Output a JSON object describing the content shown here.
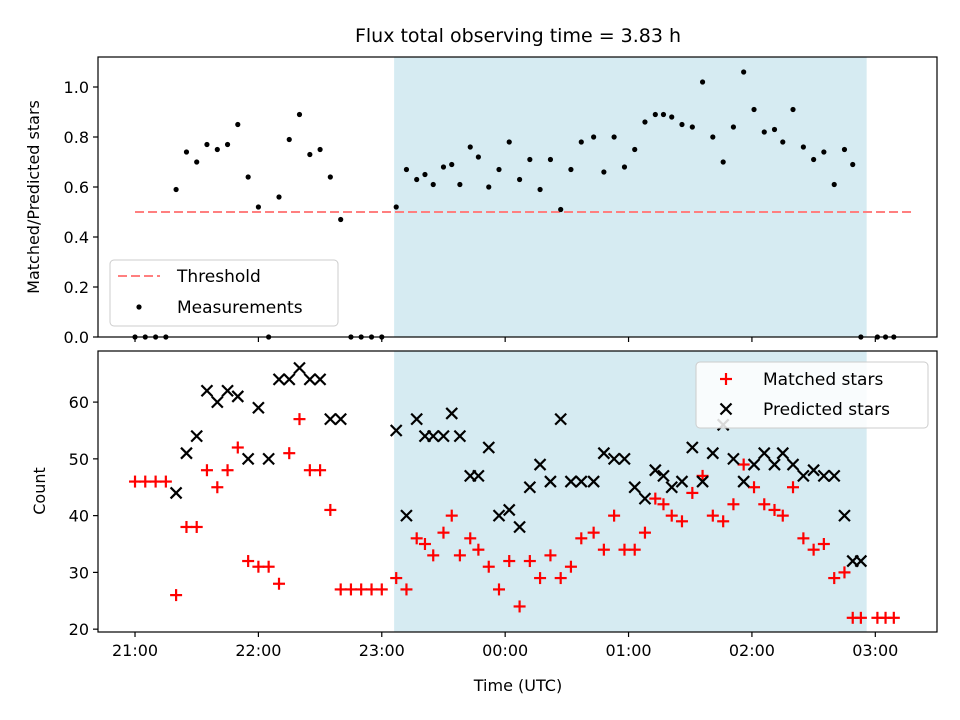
{
  "chart_data": {
    "type": "scatter",
    "title": "Flux total observing time = 3.83 h",
    "xlabel": "Time (UTC)",
    "x_ticks": [
      "21:00",
      "22:00",
      "23:00",
      "00:00",
      "01:00",
      "02:00",
      "03:00"
    ],
    "colors": {
      "shade": "#add8e6",
      "threshold": "#ff7f7f",
      "measurement": "#000000",
      "matched": "#ff0000",
      "predicted": "#000000"
    },
    "x_range_hours_after_2100": [
      -0.3,
      6.5
    ],
    "shaded_region_hours_after_2100": [
      2.1,
      5.93
    ],
    "top_panel": {
      "ylabel": "Matched/Predicted stars",
      "ylim": [
        0,
        1.12
      ],
      "y_ticks": [
        "0.0",
        "0.2",
        "0.4",
        "0.6",
        "0.8",
        "1.0"
      ],
      "legend": [
        "Threshold",
        "Measurements"
      ],
      "legend_position": "lower-left",
      "threshold": {
        "name": "Threshold",
        "value": 0.5,
        "x_start_h": 0,
        "x_end_h": 6.3
      },
      "measurements": {
        "name": "Measurements",
        "x": [
          0,
          0.083,
          0.167,
          0.25,
          0.333,
          0.417,
          0.5,
          0.583,
          0.667,
          0.75,
          0.833,
          0.917,
          1.0,
          1.083,
          1.167,
          1.25,
          1.333,
          1.417,
          1.5,
          1.583,
          1.667,
          1.75,
          1.833,
          1.917,
          2.0,
          2.117,
          2.2,
          2.283,
          2.35,
          2.417,
          2.5,
          2.567,
          2.633,
          2.717,
          2.783,
          2.867,
          2.95,
          3.033,
          3.117,
          3.2,
          3.283,
          3.367,
          3.45,
          3.533,
          3.617,
          3.717,
          3.8,
          3.883,
          3.967,
          4.05,
          4.133,
          4.217,
          4.283,
          4.35,
          4.433,
          4.517,
          4.6,
          4.683,
          4.767,
          4.85,
          4.933,
          5.017,
          5.1,
          5.183,
          5.25,
          5.333,
          5.417,
          5.5,
          5.583,
          5.667,
          5.75,
          5.817,
          5.883,
          6.017,
          6.083,
          6.15
        ],
        "y": [
          0,
          0,
          0,
          0,
          0.59,
          0.74,
          0.7,
          0.77,
          0.75,
          0.77,
          0.85,
          0.64,
          0.52,
          0,
          0.56,
          0.79,
          0.89,
          0.73,
          0.75,
          0.64,
          0.47,
          0,
          0,
          0,
          0,
          0.52,
          0.67,
          0.63,
          0.65,
          0.61,
          0.68,
          0.69,
          0.61,
          0.76,
          0.72,
          0.6,
          0.67,
          0.78,
          0.63,
          0.71,
          0.59,
          0.71,
          0.51,
          0.67,
          0.78,
          0.8,
          0.66,
          0.8,
          0.68,
          0.75,
          0.86,
          0.89,
          0.89,
          0.88,
          0.85,
          0.84,
          1.02,
          0.8,
          0.7,
          0.84,
          1.06,
          0.91,
          0.82,
          0.83,
          0.78,
          0.91,
          0.76,
          0.71,
          0.74,
          0.61,
          0.75,
          0.69,
          0,
          0,
          0,
          0
        ]
      }
    },
    "bottom_panel": {
      "ylabel": "Count",
      "ylim": [
        19.5,
        69
      ],
      "y_ticks": [
        "20",
        "30",
        "40",
        "50",
        "60"
      ],
      "legend": [
        "Matched stars",
        "Predicted stars"
      ],
      "legend_position": "upper-right",
      "series": [
        {
          "name": "Matched stars",
          "x": [
            0,
            0.083,
            0.167,
            0.25,
            0.333,
            0.417,
            0.5,
            0.583,
            0.667,
            0.75,
            0.833,
            0.917,
            1.0,
            1.083,
            1.167,
            1.25,
            1.333,
            1.417,
            1.5,
            1.583,
            1.667,
            1.75,
            1.833,
            1.917,
            2.0,
            2.117,
            2.2,
            2.283,
            2.35,
            2.417,
            2.5,
            2.567,
            2.633,
            2.717,
            2.783,
            2.867,
            2.95,
            3.033,
            3.117,
            3.2,
            3.283,
            3.367,
            3.45,
            3.533,
            3.617,
            3.717,
            3.8,
            3.883,
            3.967,
            4.05,
            4.133,
            4.217,
            4.283,
            4.35,
            4.433,
            4.517,
            4.6,
            4.683,
            4.767,
            4.85,
            4.933,
            5.017,
            5.1,
            5.183,
            5.25,
            5.333,
            5.417,
            5.5,
            5.583,
            5.667,
            5.75,
            5.817,
            5.883,
            6.017,
            6.083,
            6.15
          ],
          "y": [
            46,
            46,
            46,
            46,
            26,
            38,
            38,
            48,
            45,
            48,
            52,
            32,
            31,
            31,
            28,
            51,
            57,
            48,
            48,
            41,
            27,
            27,
            27,
            27,
            27,
            29,
            27,
            36,
            35,
            33,
            37,
            40,
            33,
            36,
            34,
            31,
            27,
            32,
            24,
            32,
            29,
            33,
            29,
            31,
            36,
            37,
            34,
            40,
            34,
            34,
            37,
            43,
            42,
            40,
            39,
            44,
            47,
            40,
            39,
            42,
            49,
            45,
            42,
            41,
            40,
            45,
            36,
            34,
            35,
            29,
            30,
            22,
            22,
            22,
            22,
            22
          ]
        },
        {
          "name": "Predicted stars",
          "x": [
            0.333,
            0.417,
            0.5,
            0.583,
            0.667,
            0.75,
            0.833,
            0.917,
            1.0,
            1.083,
            1.167,
            1.25,
            1.333,
            1.417,
            1.5,
            1.583,
            1.667,
            2.117,
            2.2,
            2.283,
            2.35,
            2.417,
            2.5,
            2.567,
            2.633,
            2.717,
            2.783,
            2.867,
            2.95,
            3.033,
            3.117,
            3.2,
            3.283,
            3.367,
            3.45,
            3.533,
            3.617,
            3.717,
            3.8,
            3.883,
            3.967,
            4.05,
            4.133,
            4.217,
            4.283,
            4.35,
            4.433,
            4.517,
            4.6,
            4.683,
            4.767,
            4.85,
            4.933,
            5.017,
            5.1,
            5.183,
            5.25,
            5.333,
            5.417,
            5.5,
            5.583,
            5.667,
            5.75,
            5.817,
            5.883
          ],
          "y": [
            44,
            51,
            54,
            62,
            60,
            62,
            61,
            50,
            59,
            50,
            64,
            64,
            66,
            64,
            64,
            57,
            57,
            55,
            40,
            57,
            54,
            54,
            54,
            58,
            54,
            47,
            47,
            52,
            40,
            41,
            38,
            45,
            49,
            46,
            57,
            46,
            46,
            46,
            51,
            50,
            50,
            45,
            43,
            48,
            47,
            45,
            46,
            52,
            46,
            51,
            56,
            50,
            46,
            49,
            51,
            49,
            51,
            49,
            47,
            48,
            47,
            47,
            40,
            32,
            32
          ]
        }
      ]
    }
  }
}
